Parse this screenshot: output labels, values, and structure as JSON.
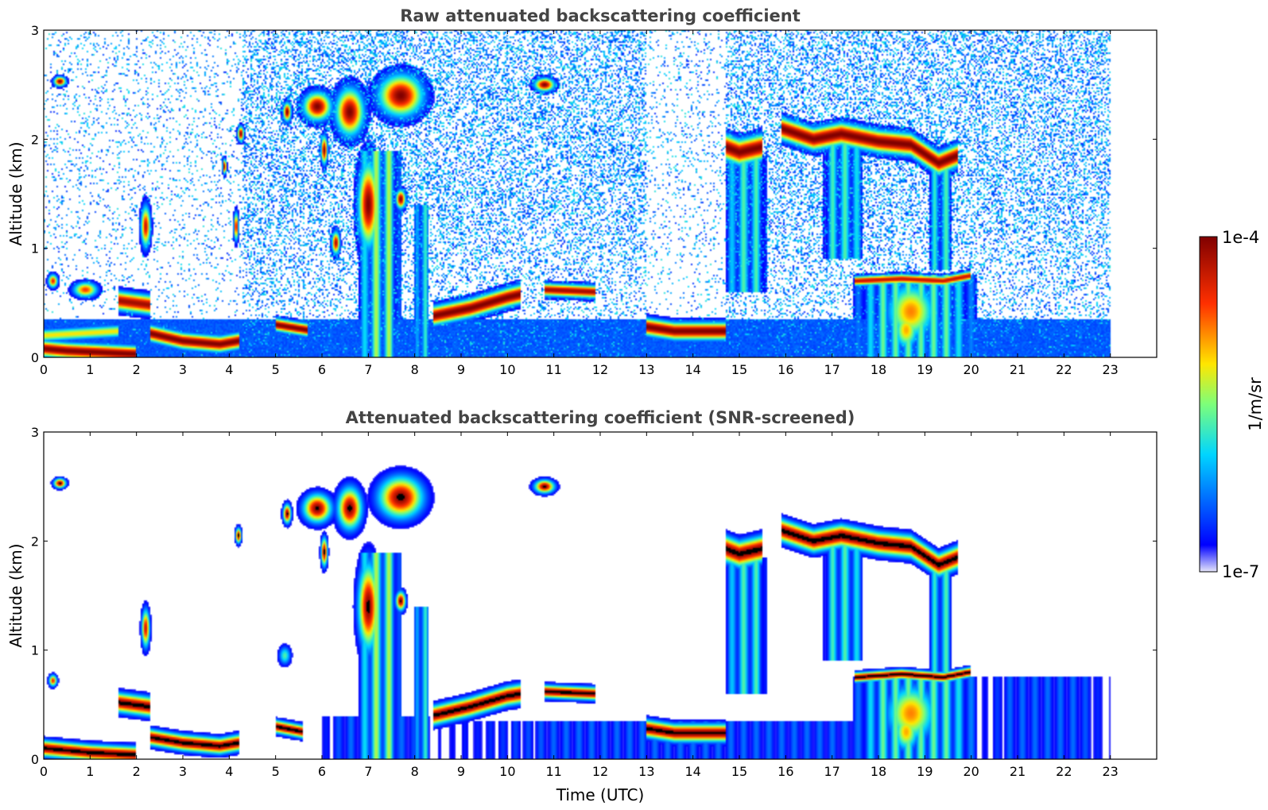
{
  "chart_data": [
    {
      "type": "heatmap",
      "title": "Raw attenuated backscattering coefficient",
      "xlabel": "",
      "ylabel": "Altitude (km)",
      "xlim": [
        0,
        24
      ],
      "ylim": [
        0,
        3
      ],
      "x_ticks": [
        "0",
        "1",
        "2",
        "3",
        "4",
        "5",
        "6",
        "7",
        "8",
        "9",
        "10",
        "11",
        "12",
        "13",
        "14",
        "15",
        "16",
        "17",
        "18",
        "19",
        "20",
        "21",
        "22",
        "23"
      ],
      "y_ticks": [
        "0",
        "1",
        "2",
        "3"
      ],
      "data_time_range": [
        0,
        23
      ],
      "noise": true,
      "features": [
        {
          "kind": "layer",
          "t": [
            0.0,
            0.5,
            1.0,
            1.5,
            2.0
          ],
          "z": [
            0.08,
            0.06,
            0.05,
            0.04,
            0.03
          ],
          "thick": 0.1,
          "level": 1.0
        },
        {
          "kind": "layer",
          "t": [
            0.0,
            0.8,
            1.6
          ],
          "z": [
            0.2,
            0.22,
            0.24
          ],
          "thick": 0.08,
          "level": 0.62
        },
        {
          "kind": "layer",
          "t": [
            2.3,
            3.0,
            3.8,
            4.2
          ],
          "z": [
            0.22,
            0.15,
            0.12,
            0.15
          ],
          "thick": 0.1,
          "level": 1.0
        },
        {
          "kind": "layer",
          "t": [
            5.0,
            5.7
          ],
          "z": [
            0.3,
            0.25
          ],
          "thick": 0.08,
          "level": 1.0
        },
        {
          "kind": "layer",
          "t": [
            1.6,
            2.3
          ],
          "z": [
            0.52,
            0.48
          ],
          "thick": 0.12,
          "level": 0.95
        },
        {
          "kind": "layer",
          "t": [
            8.4,
            9.2,
            10.0,
            10.3
          ],
          "z": [
            0.38,
            0.45,
            0.55,
            0.58
          ],
          "thick": 0.12,
          "level": 1.0
        },
        {
          "kind": "layer",
          "t": [
            10.8,
            11.9
          ],
          "z": [
            0.62,
            0.6
          ],
          "thick": 0.08,
          "level": 0.95
        },
        {
          "kind": "layer",
          "t": [
            13.0,
            13.6,
            14.7
          ],
          "z": [
            0.28,
            0.24,
            0.24
          ],
          "thick": 0.11,
          "level": 1.0
        },
        {
          "kind": "layer",
          "t": [
            14.7,
            15.0,
            15.5
          ],
          "z": [
            1.93,
            1.88,
            1.93
          ],
          "thick": 0.16,
          "level": 1.0
        },
        {
          "kind": "layer",
          "t": [
            15.9,
            16.6,
            17.2,
            18.0,
            18.7,
            19.3,
            19.7
          ],
          "z": [
            2.1,
            2.0,
            2.05,
            1.98,
            1.95,
            1.78,
            1.85
          ],
          "thick": 0.14,
          "level": 1.0
        },
        {
          "kind": "layer",
          "t": [
            17.5,
            18.5,
            19.4,
            20.0
          ],
          "z": [
            0.7,
            0.72,
            0.7,
            0.75
          ],
          "thick": 0.06,
          "level": 0.9
        },
        {
          "kind": "blob",
          "t": 0.35,
          "z": 2.53,
          "rt": 0.15,
          "rz": 0.05,
          "level": 1.0
        },
        {
          "kind": "blob",
          "t": 0.2,
          "z": 0.7,
          "rt": 0.12,
          "rz": 0.07,
          "level": 0.85
        },
        {
          "kind": "blob",
          "t": 0.9,
          "z": 0.62,
          "rt": 0.3,
          "rz": 0.08,
          "level": 0.8
        },
        {
          "kind": "blob",
          "t": 2.2,
          "z": 1.2,
          "rt": 0.12,
          "rz": 0.22,
          "level": 0.9
        },
        {
          "kind": "blob",
          "t": 4.25,
          "z": 2.05,
          "rt": 0.08,
          "rz": 0.08,
          "level": 1.0
        },
        {
          "kind": "blob",
          "t": 4.15,
          "z": 1.2,
          "rt": 0.06,
          "rz": 0.15,
          "level": 0.9
        },
        {
          "kind": "blob",
          "t": 3.9,
          "z": 1.75,
          "rt": 0.05,
          "rz": 0.08,
          "level": 1.0
        },
        {
          "kind": "blob",
          "t": 5.25,
          "z": 2.25,
          "rt": 0.1,
          "rz": 0.1,
          "level": 1.0
        },
        {
          "kind": "blob",
          "t": 5.9,
          "z": 2.3,
          "rt": 0.35,
          "rz": 0.15,
          "level": 1.0
        },
        {
          "kind": "blob",
          "t": 6.05,
          "z": 1.9,
          "rt": 0.08,
          "rz": 0.15,
          "level": 1.0
        },
        {
          "kind": "blob",
          "t": 6.6,
          "z": 2.25,
          "rt": 0.35,
          "rz": 0.25,
          "level": 1.0
        },
        {
          "kind": "blob",
          "t": 7.0,
          "z": 1.4,
          "rt": 0.25,
          "rz": 0.45,
          "level": 1.0
        },
        {
          "kind": "blob",
          "t": 7.7,
          "z": 2.4,
          "rt": 0.55,
          "rz": 0.22,
          "level": 1.0
        },
        {
          "kind": "blob",
          "t": 7.7,
          "z": 1.45,
          "rt": 0.12,
          "rz": 0.1,
          "level": 1.0
        },
        {
          "kind": "blob",
          "t": 6.3,
          "z": 1.05,
          "rt": 0.1,
          "rz": 0.12,
          "level": 0.95
        },
        {
          "kind": "blob",
          "t": 10.8,
          "z": 2.5,
          "rt": 0.25,
          "rz": 0.07,
          "level": 1.0
        },
        {
          "kind": "blob",
          "t": 18.7,
          "z": 0.42,
          "rt": 0.6,
          "rz": 0.3,
          "level": 0.72
        },
        {
          "kind": "blob",
          "t": 18.6,
          "z": 0.25,
          "rt": 0.3,
          "rz": 0.2,
          "level": 0.68
        },
        {
          "kind": "column",
          "t0": 6.8,
          "t1": 7.7,
          "z0": 0.0,
          "z1": 1.9,
          "level": 0.55
        },
        {
          "kind": "column",
          "t0": 8.0,
          "t1": 8.3,
          "z0": 0.0,
          "z1": 1.4,
          "level": 0.5
        },
        {
          "kind": "column",
          "t0": 14.7,
          "t1": 15.6,
          "z0": 0.6,
          "z1": 1.85,
          "level": 0.45
        },
        {
          "kind": "column",
          "t0": 16.8,
          "t1": 17.7,
          "z0": 0.9,
          "z1": 1.95,
          "level": 0.45
        },
        {
          "kind": "column",
          "t0": 19.1,
          "t1": 19.6,
          "z0": 0.8,
          "z1": 1.75,
          "level": 0.45
        },
        {
          "kind": "column",
          "t0": 17.4,
          "t1": 20.2,
          "z0": 0.0,
          "z1": 0.75,
          "level": 0.48
        }
      ]
    },
    {
      "type": "heatmap",
      "title": "Attenuated backscattering coefficient (SNR-screened)",
      "xlabel": "Time (UTC)",
      "ylabel": "Altitude (km)",
      "xlim": [
        0,
        24
      ],
      "ylim": [
        0,
        3
      ],
      "x_ticks": [
        "0",
        "1",
        "2",
        "3",
        "4",
        "5",
        "6",
        "7",
        "8",
        "9",
        "10",
        "11",
        "12",
        "13",
        "14",
        "15",
        "16",
        "17",
        "18",
        "19",
        "20",
        "21",
        "22",
        "23"
      ],
      "y_ticks": [
        "0",
        "1",
        "2",
        "3"
      ],
      "data_time_range": [
        0,
        23
      ],
      "noise": false,
      "features": [
        {
          "kind": "layer",
          "t": [
            0.0,
            0.5,
            1.0,
            1.5,
            2.0
          ],
          "z": [
            0.1,
            0.08,
            0.06,
            0.05,
            0.04
          ],
          "thick": 0.1,
          "level": 1.0
        },
        {
          "kind": "layer",
          "t": [
            2.3,
            3.0,
            3.8,
            4.2
          ],
          "z": [
            0.2,
            0.15,
            0.12,
            0.15
          ],
          "thick": 0.1,
          "level": 1.0
        },
        {
          "kind": "layer",
          "t": [
            1.6,
            2.3
          ],
          "z": [
            0.52,
            0.48
          ],
          "thick": 0.12,
          "level": 1.0
        },
        {
          "kind": "layer",
          "t": [
            5.0,
            5.6
          ],
          "z": [
            0.3,
            0.25
          ],
          "thick": 0.08,
          "level": 1.0
        },
        {
          "kind": "layer",
          "t": [
            8.4,
            9.2,
            10.0,
            10.3
          ],
          "z": [
            0.4,
            0.48,
            0.58,
            0.6
          ],
          "thick": 0.12,
          "level": 1.0
        },
        {
          "kind": "layer",
          "t": [
            10.8,
            11.9
          ],
          "z": [
            0.62,
            0.6
          ],
          "thick": 0.08,
          "level": 1.0
        },
        {
          "kind": "layer",
          "t": [
            13.0,
            13.6,
            14.7
          ],
          "z": [
            0.28,
            0.24,
            0.24
          ],
          "thick": 0.11,
          "level": 1.0
        },
        {
          "kind": "layer",
          "t": [
            14.7,
            15.0,
            15.5
          ],
          "z": [
            1.93,
            1.88,
            1.93
          ],
          "thick": 0.16,
          "level": 1.0
        },
        {
          "kind": "layer",
          "t": [
            15.9,
            16.6,
            17.2,
            18.0,
            18.7,
            19.3,
            19.7
          ],
          "z": [
            2.1,
            2.0,
            2.05,
            1.98,
            1.95,
            1.78,
            1.85
          ],
          "thick": 0.14,
          "level": 1.0
        },
        {
          "kind": "layer",
          "t": [
            17.5,
            18.5,
            19.4,
            20.0
          ],
          "z": [
            0.75,
            0.78,
            0.75,
            0.8
          ],
          "thick": 0.06,
          "level": 1.0
        },
        {
          "kind": "blob",
          "t": 0.35,
          "z": 2.53,
          "rt": 0.15,
          "rz": 0.05,
          "level": 1.0
        },
        {
          "kind": "blob",
          "t": 0.2,
          "z": 0.72,
          "rt": 0.1,
          "rz": 0.06,
          "level": 0.85
        },
        {
          "kind": "blob",
          "t": 2.2,
          "z": 1.2,
          "rt": 0.1,
          "rz": 0.2,
          "level": 0.9
        },
        {
          "kind": "blob",
          "t": 4.2,
          "z": 2.05,
          "rt": 0.07,
          "rz": 0.08,
          "level": 1.0
        },
        {
          "kind": "blob",
          "t": 5.25,
          "z": 2.25,
          "rt": 0.1,
          "rz": 0.1,
          "level": 1.0
        },
        {
          "kind": "blob",
          "t": 5.9,
          "z": 2.3,
          "rt": 0.35,
          "rz": 0.15,
          "level": 1.0
        },
        {
          "kind": "blob",
          "t": 6.05,
          "z": 1.9,
          "rt": 0.08,
          "rz": 0.15,
          "level": 1.0
        },
        {
          "kind": "blob",
          "t": 6.6,
          "z": 2.3,
          "rt": 0.3,
          "rz": 0.22,
          "level": 1.0
        },
        {
          "kind": "blob",
          "t": 7.0,
          "z": 1.4,
          "rt": 0.25,
          "rz": 0.45,
          "level": 1.0
        },
        {
          "kind": "blob",
          "t": 7.7,
          "z": 2.4,
          "rt": 0.55,
          "rz": 0.22,
          "level": 1.0
        },
        {
          "kind": "blob",
          "t": 7.7,
          "z": 1.45,
          "rt": 0.12,
          "rz": 0.1,
          "level": 1.0
        },
        {
          "kind": "blob",
          "t": 10.8,
          "z": 2.5,
          "rt": 0.25,
          "rz": 0.07,
          "level": 1.0
        },
        {
          "kind": "blob",
          "t": 5.2,
          "z": 0.95,
          "rt": 0.15,
          "rz": 0.1,
          "level": 0.45
        },
        {
          "kind": "blob",
          "t": 18.7,
          "z": 0.42,
          "rt": 0.6,
          "rz": 0.3,
          "level": 0.72
        },
        {
          "kind": "blob",
          "t": 18.6,
          "z": 0.25,
          "rt": 0.3,
          "rz": 0.2,
          "level": 0.68
        },
        {
          "kind": "column",
          "t0": 6.8,
          "t1": 7.7,
          "z0": 0.0,
          "z1": 1.9,
          "level": 0.55
        },
        {
          "kind": "column",
          "t0": 8.0,
          "t1": 8.3,
          "z0": 0.0,
          "z1": 1.4,
          "level": 0.5
        },
        {
          "kind": "column",
          "t0": 14.7,
          "t1": 15.6,
          "z0": 0.6,
          "z1": 1.85,
          "level": 0.45
        },
        {
          "kind": "column",
          "t0": 16.8,
          "t1": 17.7,
          "z0": 0.9,
          "z1": 1.95,
          "level": 0.45
        },
        {
          "kind": "column",
          "t0": 19.1,
          "t1": 19.6,
          "z0": 0.8,
          "z1": 1.75,
          "level": 0.45
        },
        {
          "kind": "column",
          "t0": 17.4,
          "t1": 20.2,
          "z0": 0.0,
          "z1": 0.75,
          "level": 0.48
        },
        {
          "kind": "column",
          "t0": 8.4,
          "t1": 20.2,
          "z0": 0.0,
          "z1": 0.35,
          "level": 0.22
        },
        {
          "kind": "column",
          "t0": 20.2,
          "t1": 23.0,
          "z0": 0.0,
          "z1": 0.75,
          "level": 0.22
        },
        {
          "kind": "column",
          "t0": 5.9,
          "t1": 8.4,
          "z0": 0.0,
          "z1": 0.4,
          "level": 0.22
        }
      ]
    }
  ],
  "colorbar": {
    "label": "1/m/sr",
    "max_label": "1e-4",
    "min_label": "1e-7",
    "scale": "log",
    "colormap": "jet",
    "over_color": "#000000"
  }
}
